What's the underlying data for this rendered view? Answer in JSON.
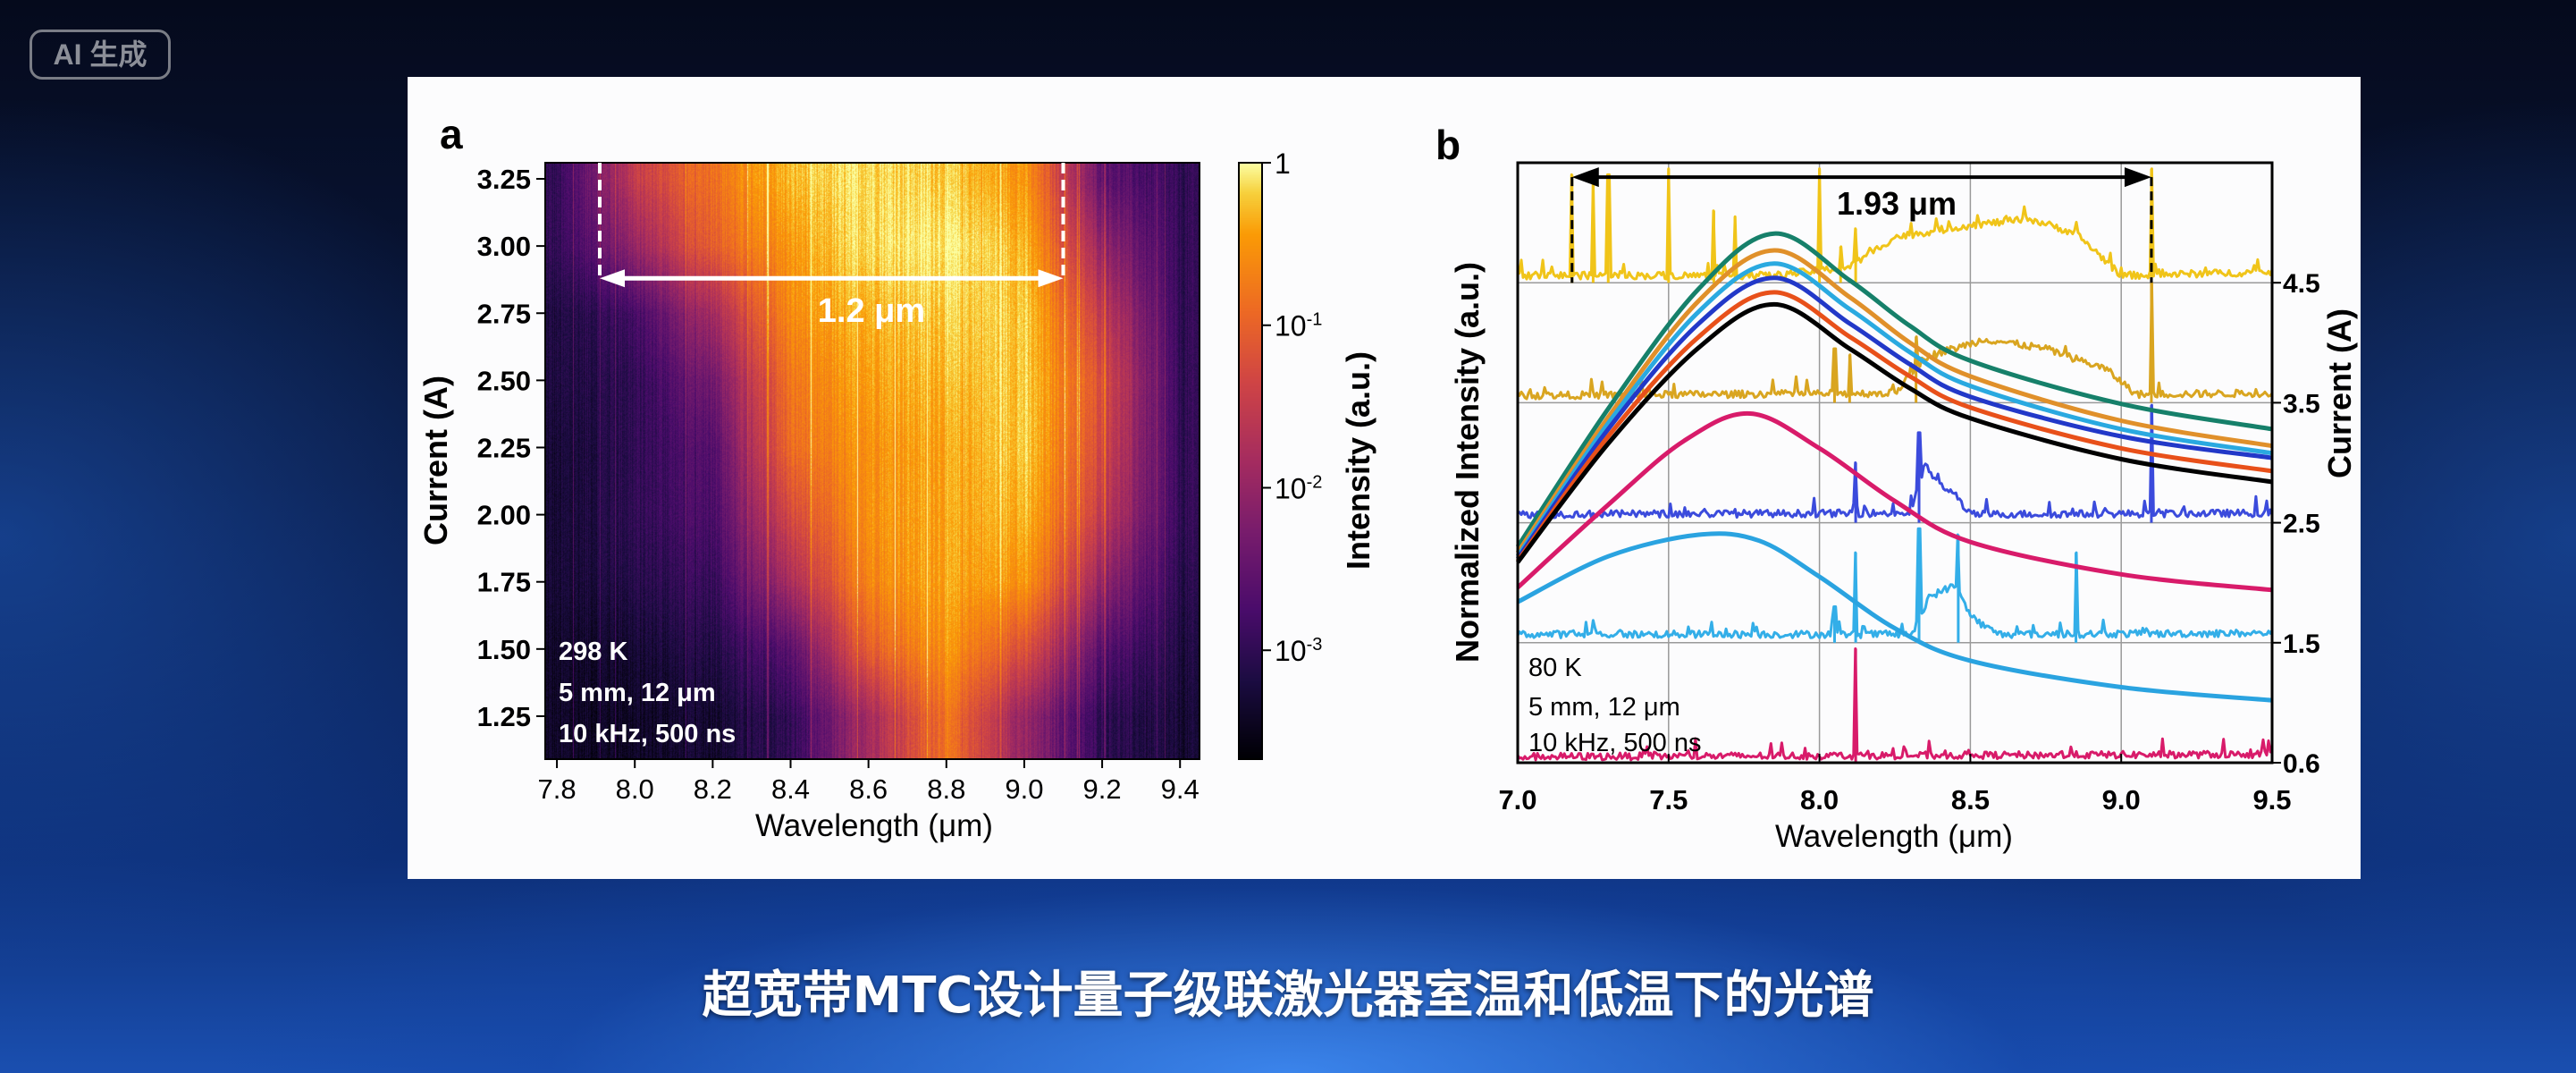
{
  "badge": "AI 生成",
  "caption": "超宽带MTC设计量子级联激光器室温和低温下的光谱",
  "chart_data": [
    {
      "panel": "a",
      "type": "heatmap",
      "xlabel": "Wavelength (μm)",
      "ylabel": "Current (A)",
      "colorbar_label": "Intensity (a.u.)",
      "colorbar_scale": "log",
      "colormap": "inferno",
      "xlim": [
        7.77,
        9.45
      ],
      "ylim": [
        1.09,
        3.31
      ],
      "clim_log10": [
        -3.67,
        0
      ],
      "x_ticks": [
        "7.8",
        "8.0",
        "8.2",
        "8.4",
        "8.6",
        "8.8",
        "9.0",
        "9.2",
        "9.4"
      ],
      "y_ticks": [
        "1.25",
        "1.50",
        "1.75",
        "2.00",
        "2.25",
        "2.50",
        "2.75",
        "3.00",
        "3.25"
      ],
      "colorbar_ticks": [
        {
          "value": 0,
          "base": "1",
          "exp": ""
        },
        {
          "value": -1,
          "base": "10",
          "exp": "-1"
        },
        {
          "value": -2,
          "base": "10",
          "exp": "-2"
        },
        {
          "value": -3,
          "base": "10",
          "exp": "-3"
        }
      ],
      "grid_x": [
        7.8,
        8.0,
        8.2,
        8.4,
        8.6,
        8.8,
        9.0,
        9.2,
        9.4
      ],
      "grid_y": [
        1.25,
        1.5,
        1.75,
        2.0,
        2.25,
        2.5,
        2.75,
        3.0,
        3.25
      ],
      "log10_intensity": [
        [
          -3.4,
          -3.4,
          -3.3,
          -3.0,
          -1.8,
          -0.8,
          -2.0,
          -3.0,
          -3.3
        ],
        [
          -3.4,
          -3.3,
          -3.1,
          -2.6,
          -1.0,
          -0.5,
          -1.2,
          -2.6,
          -3.2
        ],
        [
          -3.3,
          -3.1,
          -2.9,
          -1.8,
          -0.6,
          -0.4,
          -0.5,
          -2.0,
          -3.1
        ],
        [
          -3.3,
          -3.0,
          -2.7,
          -1.3,
          -0.5,
          -0.4,
          -0.3,
          -1.5,
          -3.0
        ],
        [
          -3.3,
          -3.0,
          -2.6,
          -0.9,
          -0.5,
          -0.4,
          -0.2,
          -1.3,
          -3.0
        ],
        [
          -3.2,
          -3.0,
          -2.3,
          -0.8,
          -0.4,
          -0.3,
          -0.2,
          -1.2,
          -3.0
        ],
        [
          -3.2,
          -2.8,
          -1.8,
          -0.6,
          -0.3,
          -0.2,
          -0.2,
          -1.5,
          -3.0
        ],
        [
          -3.0,
          -2.0,
          -1.0,
          -0.5,
          -0.1,
          -0.05,
          -0.3,
          -2.0,
          -3.0
        ],
        [
          -3.0,
          -1.5,
          -0.8,
          -0.3,
          -0.1,
          -0.2,
          -0.5,
          -2.5,
          -3.0
        ]
      ],
      "span_annotation": {
        "label": "1.2 μm",
        "x_start": 7.91,
        "x_end": 9.1,
        "current": 2.88
      },
      "conditions": [
        "298 K",
        "5 mm, 12 μm",
        "10 kHz, 500 ns"
      ]
    },
    {
      "panel": "b",
      "type": "line",
      "xlabel": "Wavelength (μm)",
      "ylabel": "Normalized Intensity (a.u.)",
      "y2label": "Current (A)",
      "xlim": [
        7.0,
        9.5
      ],
      "ylim": [
        0,
        5
      ],
      "x_ticks": [
        "7.0",
        "7.5",
        "8.0",
        "8.5",
        "9.0",
        "9.5"
      ],
      "grid": true,
      "current_ticks": [
        {
          "offset": 4,
          "label": "4.5"
        },
        {
          "offset": 3,
          "label": "3.5"
        },
        {
          "offset": 2,
          "label": "2.5"
        },
        {
          "offset": 1,
          "label": "1.5"
        },
        {
          "offset": 0,
          "label": "0.6"
        }
      ],
      "smooth_series": [
        {
          "color": "#16806a",
          "points": [
            [
              7.0,
              1.8
            ],
            [
              7.3,
              2.95
            ],
            [
              7.6,
              3.95
            ],
            [
              7.85,
              4.41
            ],
            [
              8.1,
              4.02
            ],
            [
              8.3,
              3.64
            ],
            [
              8.5,
              3.35
            ],
            [
              9.0,
              2.99
            ],
            [
              9.5,
              2.78
            ]
          ]
        },
        {
          "color": "#e0902a",
          "points": [
            [
              7.0,
              1.75
            ],
            [
              7.3,
              2.88
            ],
            [
              7.6,
              3.85
            ],
            [
              7.85,
              4.27
            ],
            [
              8.1,
              3.88
            ],
            [
              8.3,
              3.5
            ],
            [
              8.5,
              3.22
            ],
            [
              9.0,
              2.85
            ],
            [
              9.5,
              2.64
            ]
          ]
        },
        {
          "color": "#2aa9e0",
          "points": [
            [
              7.0,
              1.72
            ],
            [
              7.3,
              2.83
            ],
            [
              7.6,
              3.76
            ],
            [
              7.85,
              4.16
            ],
            [
              8.1,
              3.78
            ],
            [
              8.3,
              3.42
            ],
            [
              8.5,
              3.14
            ],
            [
              9.0,
              2.78
            ],
            [
              9.5,
              2.58
            ]
          ]
        },
        {
          "color": "#2238c8",
          "points": [
            [
              7.0,
              1.7
            ],
            [
              7.3,
              2.78
            ],
            [
              7.6,
              3.66
            ],
            [
              7.85,
              4.04
            ],
            [
              8.1,
              3.66
            ],
            [
              8.3,
              3.32
            ],
            [
              8.5,
              3.05
            ],
            [
              9.0,
              2.72
            ],
            [
              9.5,
              2.54
            ]
          ]
        },
        {
          "color": "#e8501a",
          "points": [
            [
              7.0,
              1.68
            ],
            [
              7.3,
              2.72
            ],
            [
              7.6,
              3.55
            ],
            [
              7.85,
              3.92
            ],
            [
              8.1,
              3.55
            ],
            [
              8.3,
              3.22
            ],
            [
              8.5,
              2.96
            ],
            [
              9.0,
              2.62
            ],
            [
              9.5,
              2.43
            ]
          ]
        },
        {
          "color": "#000000",
          "points": [
            [
              7.0,
              1.67
            ],
            [
              7.3,
              2.66
            ],
            [
              7.6,
              3.46
            ],
            [
              7.85,
              3.82
            ],
            [
              8.1,
              3.45
            ],
            [
              8.3,
              3.12
            ],
            [
              8.5,
              2.87
            ],
            [
              9.0,
              2.53
            ],
            [
              9.5,
              2.34
            ]
          ]
        },
        {
          "color": "#d81b6a",
          "points": [
            [
              7.0,
              1.46
            ],
            [
              7.3,
              2.15
            ],
            [
              7.55,
              2.68
            ],
            [
              7.77,
              2.91
            ],
            [
              8.0,
              2.62
            ],
            [
              8.25,
              2.18
            ],
            [
              8.5,
              1.84
            ],
            [
              9.0,
              1.57
            ],
            [
              9.5,
              1.44
            ]
          ]
        },
        {
          "color": "#2aa3e0",
          "points": [
            [
              7.0,
              1.34
            ],
            [
              7.3,
              1.72
            ],
            [
              7.6,
              1.9
            ],
            [
              7.8,
              1.85
            ],
            [
              8.0,
              1.55
            ],
            [
              8.25,
              1.12
            ],
            [
              8.5,
              0.85
            ],
            [
              9.0,
              0.63
            ],
            [
              9.5,
              0.52
            ]
          ]
        }
      ],
      "current_traces": [
        {
          "current": "4.5",
          "offset": 4,
          "color": "#f0c419",
          "envelope": [
            [
              7.0,
              0.03
            ],
            [
              7.85,
              0.03
            ],
            [
              8.1,
              0.1
            ],
            [
              8.25,
              0.35
            ],
            [
              8.5,
              0.45
            ],
            [
              8.7,
              0.5
            ],
            [
              8.85,
              0.38
            ],
            [
              8.95,
              0.15
            ],
            [
              9.0,
              0.03
            ],
            [
              9.5,
              0.06
            ]
          ],
          "spikes": [
            [
              7.18,
              0.9
            ],
            [
              7.25,
              0.85
            ],
            [
              7.3,
              0.9
            ],
            [
              7.5,
              0.95
            ],
            [
              7.65,
              0.6
            ],
            [
              7.72,
              0.55
            ],
            [
              8.0,
              0.95
            ],
            [
              8.07,
              0.3
            ],
            [
              8.12,
              0.45
            ],
            [
              9.1,
              0.95
            ]
          ]
        },
        {
          "current": "3.5",
          "offset": 3,
          "color": "#d9a520",
          "envelope": [
            [
              7.0,
              0.03
            ],
            [
              8.25,
              0.05
            ],
            [
              8.35,
              0.35
            ],
            [
              8.55,
              0.5
            ],
            [
              8.75,
              0.42
            ],
            [
              8.95,
              0.25
            ],
            [
              9.05,
              0.04
            ],
            [
              9.5,
              0.05
            ]
          ],
          "spikes": [
            [
              8.05,
              0.45
            ],
            [
              8.1,
              0.4
            ],
            [
              8.32,
              0.55
            ],
            [
              9.1,
              1.0
            ]
          ]
        },
        {
          "current": "2.5",
          "offset": 2,
          "color": "#3b4bdc",
          "envelope": [
            [
              7.0,
              0.04
            ],
            [
              8.3,
              0.05
            ],
            [
              8.35,
              0.45
            ],
            [
              8.4,
              0.28
            ],
            [
              8.45,
              0.2
            ],
            [
              8.5,
              0.04
            ],
            [
              9.5,
              0.05
            ]
          ],
          "spikes": [
            [
              8.12,
              0.5
            ],
            [
              8.33,
              0.75
            ],
            [
              9.1,
              0.98
            ]
          ]
        },
        {
          "current": "1.5",
          "offset": 1,
          "color": "#33aee8",
          "envelope": [
            [
              7.0,
              0.04
            ],
            [
              8.32,
              0.04
            ],
            [
              8.36,
              0.35
            ],
            [
              8.45,
              0.45
            ],
            [
              8.5,
              0.2
            ],
            [
              8.55,
              0.1
            ],
            [
              8.6,
              0.04
            ],
            [
              9.5,
              0.05
            ]
          ],
          "spikes": [
            [
              8.05,
              0.3
            ],
            [
              8.12,
              0.75
            ],
            [
              8.33,
              0.95
            ],
            [
              8.46,
              0.9
            ],
            [
              8.85,
              0.75
            ]
          ]
        },
        {
          "current": "0.6",
          "offset": 0,
          "color": "#d81b6a",
          "envelope": [
            [
              7.0,
              0.02
            ],
            [
              9.5,
              0.04
            ]
          ],
          "spikes": [
            [
              8.12,
              0.95
            ]
          ]
        }
      ],
      "span_annotation": {
        "label": "1.93 μm",
        "x_start": 7.18,
        "x_end": 9.1
      },
      "conditions": [
        "80 K",
        "5 mm, 12 μm",
        "10 kHz, 500 ns"
      ]
    }
  ]
}
